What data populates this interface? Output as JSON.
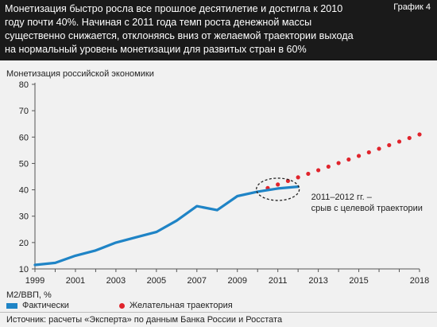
{
  "header": {
    "headline": "Монетизация быстро росла все прошлое десятилетие и достигла к 2010 году почти 40%. Начиная с 2011 года темп роста денежной массы существенно снижается, отклоняясь вниз от желаемой траектории выхода на нормальный уровень монетизации для развитых стран в 60%",
    "tag": "График 4"
  },
  "colors": {
    "actual": "#1f84c6",
    "target": "#e0242c",
    "header_bg": "#1a1a1a",
    "background": "#f1f1f1"
  },
  "chart_data": {
    "type": "line",
    "title": "Монетизация российской экономики",
    "xlabel": "М2/ВВП, %",
    "ylabel": "",
    "xlim": [
      1999,
      2018
    ],
    "ylim": [
      10,
      80
    ],
    "y_ticks": [
      10,
      20,
      30,
      40,
      50,
      60,
      70,
      80
    ],
    "x_ticks": [
      1999,
      2001,
      2003,
      2005,
      2007,
      2009,
      2011,
      2013,
      2015,
      2018
    ],
    "grid": false,
    "legend_position": "bottom",
    "series": [
      {
        "name": "Фактически",
        "style": "solid",
        "x": [
          1999,
          2000,
          2001,
          2002,
          2003,
          2004,
          2005,
          2006,
          2007,
          2008,
          2009,
          2010,
          2011,
          2012
        ],
        "y": [
          11.5,
          12.3,
          15.0,
          17.0,
          20.0,
          22.0,
          24.0,
          28.3,
          33.8,
          32.3,
          37.6,
          39.3,
          40.5,
          41.2
        ]
      },
      {
        "name": "Желательная траектория",
        "style": "dotted",
        "x": [
          2010,
          2018
        ],
        "y": [
          39.3,
          61.0
        ]
      }
    ],
    "annotation": {
      "text_line1": "2011–2012 гг. –",
      "text_line2": "срыв с целевой траектории",
      "x": 2011,
      "y": 40.5
    }
  },
  "footer": {
    "source": "Источник: расчеты «Эксперта» по данным Банка России и Росстата"
  }
}
